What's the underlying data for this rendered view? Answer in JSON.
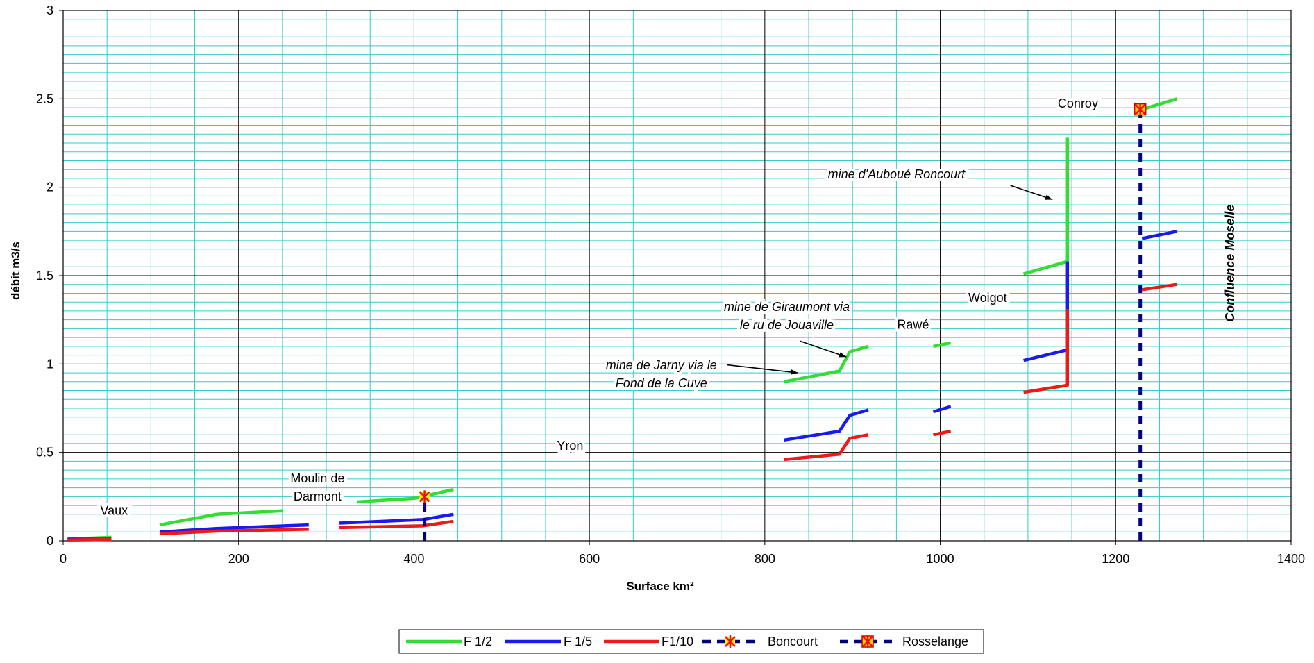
{
  "chart_data": {
    "type": "line",
    "xlabel": "Surface km²",
    "ylabel": "débit m3/s",
    "xlim": [
      0,
      1400
    ],
    "ylim": [
      0,
      3
    ],
    "xticks": [
      "0",
      "200",
      "400",
      "600",
      "800",
      "1000",
      "1200",
      "1400"
    ],
    "yticks": [
      "0",
      "0.5",
      "1",
      "1.5",
      "2",
      "2.5",
      "3"
    ],
    "grid": true,
    "legend_position": "bottom",
    "series": [
      {
        "name": "F 1/2",
        "color": "#33dd33",
        "style": "solid",
        "segments": [
          [
            [
              5,
              0.01
            ],
            [
              55,
              0.02
            ]
          ],
          [
            [
              110,
              0.09
            ],
            [
              175,
              0.15
            ],
            [
              250,
              0.17
            ]
          ],
          [
            [
              335,
              0.22
            ],
            [
              400,
              0.24
            ],
            [
              445,
              0.29
            ]
          ],
          [
            [
              822,
              0.9
            ],
            [
              885,
              0.96
            ],
            [
              897,
              1.07
            ],
            [
              918,
              1.1
            ]
          ],
          [
            [
              992,
              1.1
            ],
            [
              1012,
              1.12
            ]
          ],
          [
            [
              1095,
              1.51
            ],
            [
              1145,
              1.58
            ],
            [
              1145,
              2.28
            ]
          ],
          [
            [
              1230,
              2.44
            ],
            [
              1270,
              2.5
            ]
          ]
        ]
      },
      {
        "name": "F 1/5",
        "color": "#1a1aee",
        "style": "solid",
        "segments": [
          [
            [
              5,
              0.01
            ],
            [
              55,
              0.01
            ]
          ],
          [
            [
              110,
              0.05
            ],
            [
              175,
              0.07
            ],
            [
              280,
              0.09
            ]
          ],
          [
            [
              315,
              0.1
            ],
            [
              410,
              0.12
            ],
            [
              445,
              0.15
            ]
          ],
          [
            [
              822,
              0.57
            ],
            [
              885,
              0.62
            ],
            [
              897,
              0.71
            ],
            [
              918,
              0.74
            ]
          ],
          [
            [
              992,
              0.73
            ],
            [
              1012,
              0.76
            ]
          ],
          [
            [
              1095,
              1.02
            ],
            [
              1145,
              1.08
            ],
            [
              1145,
              1.58
            ]
          ],
          [
            [
              1230,
              1.71
            ],
            [
              1270,
              1.75
            ]
          ]
        ]
      },
      {
        "name": "F1/10",
        "color": "#ee1a1a",
        "style": "solid",
        "segments": [
          [
            [
              5,
              0.005
            ],
            [
              55,
              0.008
            ]
          ],
          [
            [
              110,
              0.04
            ],
            [
              175,
              0.055
            ],
            [
              280,
              0.065
            ]
          ],
          [
            [
              315,
              0.075
            ],
            [
              410,
              0.085
            ],
            [
              445,
              0.11
            ]
          ],
          [
            [
              822,
              0.46
            ],
            [
              885,
              0.49
            ],
            [
              897,
              0.58
            ],
            [
              918,
              0.6
            ]
          ],
          [
            [
              992,
              0.6
            ],
            [
              1012,
              0.62
            ]
          ],
          [
            [
              1095,
              0.84
            ],
            [
              1145,
              0.88
            ],
            [
              1145,
              1.31
            ]
          ],
          [
            [
              1230,
              1.42
            ],
            [
              1270,
              1.45
            ]
          ]
        ]
      },
      {
        "name": "Boncourt",
        "color": "#000080",
        "style": "dashed",
        "marker": "star",
        "segments": [
          [
            [
              412,
              0.0
            ],
            [
              412,
              0.25
            ]
          ]
        ],
        "marker_points": [
          [
            412,
            0.25
          ]
        ]
      },
      {
        "name": "Rosselange",
        "color": "#000080",
        "style": "dashed",
        "marker": "square-star",
        "segments": [
          [
            [
              1228,
              0.0
            ],
            [
              1228,
              2.44
            ]
          ]
        ],
        "marker_points": [
          [
            1228,
            2.44
          ]
        ]
      }
    ],
    "annotations": [
      {
        "lines": [
          "Vaux"
        ],
        "x": 58,
        "y": 0.147,
        "style": "normal"
      },
      {
        "lines": [
          "Moulin de",
          "Darmont"
        ],
        "x": 290,
        "y": 0.33,
        "style": "normal"
      },
      {
        "lines": [
          "Yron"
        ],
        "x": 578,
        "y": 0.515,
        "style": "normal"
      },
      {
        "lines": [
          "mine de Jarny via le",
          "Fond de la Cuve"
        ],
        "x": 682,
        "y": 0.97,
        "style": "italic",
        "arrow_to": [
          838,
          0.95
        ],
        "arrow_from": [
          757,
          0.995
        ]
      },
      {
        "lines": [
          "mine de Giraumont via",
          "le ru de Jouaville"
        ],
        "x": 825,
        "y": 1.3,
        "style": "italic",
        "arrow_to": [
          893,
          1.04
        ],
        "arrow_from": [
          840,
          1.13
        ]
      },
      {
        "lines": [
          "Rawé"
        ],
        "x": 969,
        "y": 1.2,
        "style": "normal"
      },
      {
        "lines": [
          "Woigot"
        ],
        "x": 1054,
        "y": 1.35,
        "style": "normal"
      },
      {
        "lines": [
          "mine d'Auboué Roncourt"
        ],
        "x": 950,
        "y": 2.05,
        "style": "italic",
        "arrow_to": [
          1128,
          1.93
        ],
        "arrow_from": [
          1080,
          2.01
        ]
      },
      {
        "lines": [
          "Conroy"
        ],
        "x": 1157,
        "y": 2.45,
        "style": "normal"
      },
      {
        "lines": [
          "Confluence Moselle"
        ],
        "x": 1335,
        "y": 1.57,
        "style": "bold-italic",
        "vertical": true
      }
    ]
  }
}
